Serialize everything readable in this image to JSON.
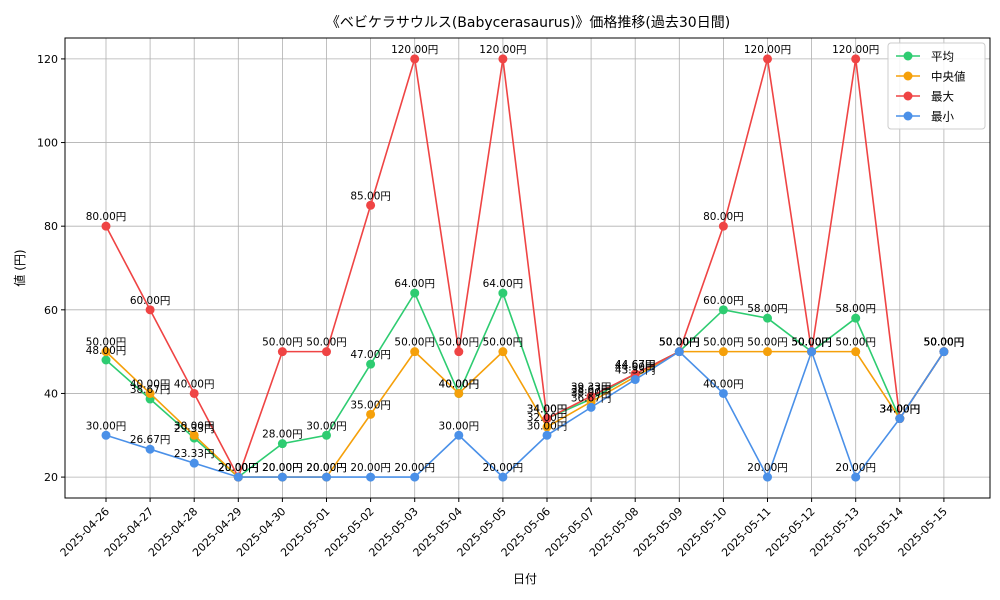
{
  "chart_data": {
    "type": "line",
    "title": "《ベビケラサウルス(Babycerasaurus)》価格推移(過去30日間)",
    "xlabel": "日付",
    "ylabel": "値 (円)",
    "ylim": [
      15,
      125
    ],
    "yticks": [
      20,
      40,
      60,
      80,
      100,
      120
    ],
    "grid": true,
    "legend_position": "top-right",
    "categories": [
      "2025-04-26",
      "2025-04-27",
      "2025-04-28",
      "2025-04-29",
      "2025-04-30",
      "2025-05-01",
      "2025-05-02",
      "2025-05-03",
      "2025-05-04",
      "2025-05-05",
      "2025-05-06",
      "2025-05-07",
      "2025-05-08",
      "2025-05-09",
      "2025-05-10",
      "2025-05-11",
      "2025-05-12",
      "2025-05-13",
      "2025-05-14",
      "2025-05-15"
    ],
    "label_suffix": "円",
    "series": [
      {
        "name": "平均",
        "color": "#2ecc71",
        "values": [
          48.0,
          38.67,
          29.33,
          20.0,
          28.0,
          30.0,
          47.0,
          64.0,
          40.0,
          64.0,
          34.0,
          38.67,
          44.67,
          50.0,
          60.0,
          58.0,
          50.0,
          58.0,
          34.0,
          50.0
        ]
      },
      {
        "name": "中央値",
        "color": "#f5a00a",
        "values": [
          50.0,
          40.0,
          30.0,
          20.0,
          20.0,
          20.0,
          35.0,
          50.0,
          40.0,
          50.0,
          32.0,
          38.0,
          44.0,
          50.0,
          50.0,
          50.0,
          50.0,
          50.0,
          34.0,
          50.0
        ]
      },
      {
        "name": "最大",
        "color": "#ef4444",
        "values": [
          80.0,
          60.0,
          40.0,
          20.0,
          50.0,
          50.0,
          85.0,
          120.0,
          50.0,
          120.0,
          34.0,
          39.33,
          44.67,
          50.0,
          80.0,
          120.0,
          50.0,
          120.0,
          34.0,
          50.0
        ]
      },
      {
        "name": "最小",
        "color": "#4a90e8",
        "values": [
          30.0,
          26.67,
          23.33,
          20.0,
          20.0,
          20.0,
          20.0,
          20.0,
          30.0,
          20.0,
          30.0,
          36.67,
          43.33,
          50.0,
          40.0,
          20.0,
          50.0,
          20.0,
          34.0,
          50.0
        ]
      }
    ]
  }
}
